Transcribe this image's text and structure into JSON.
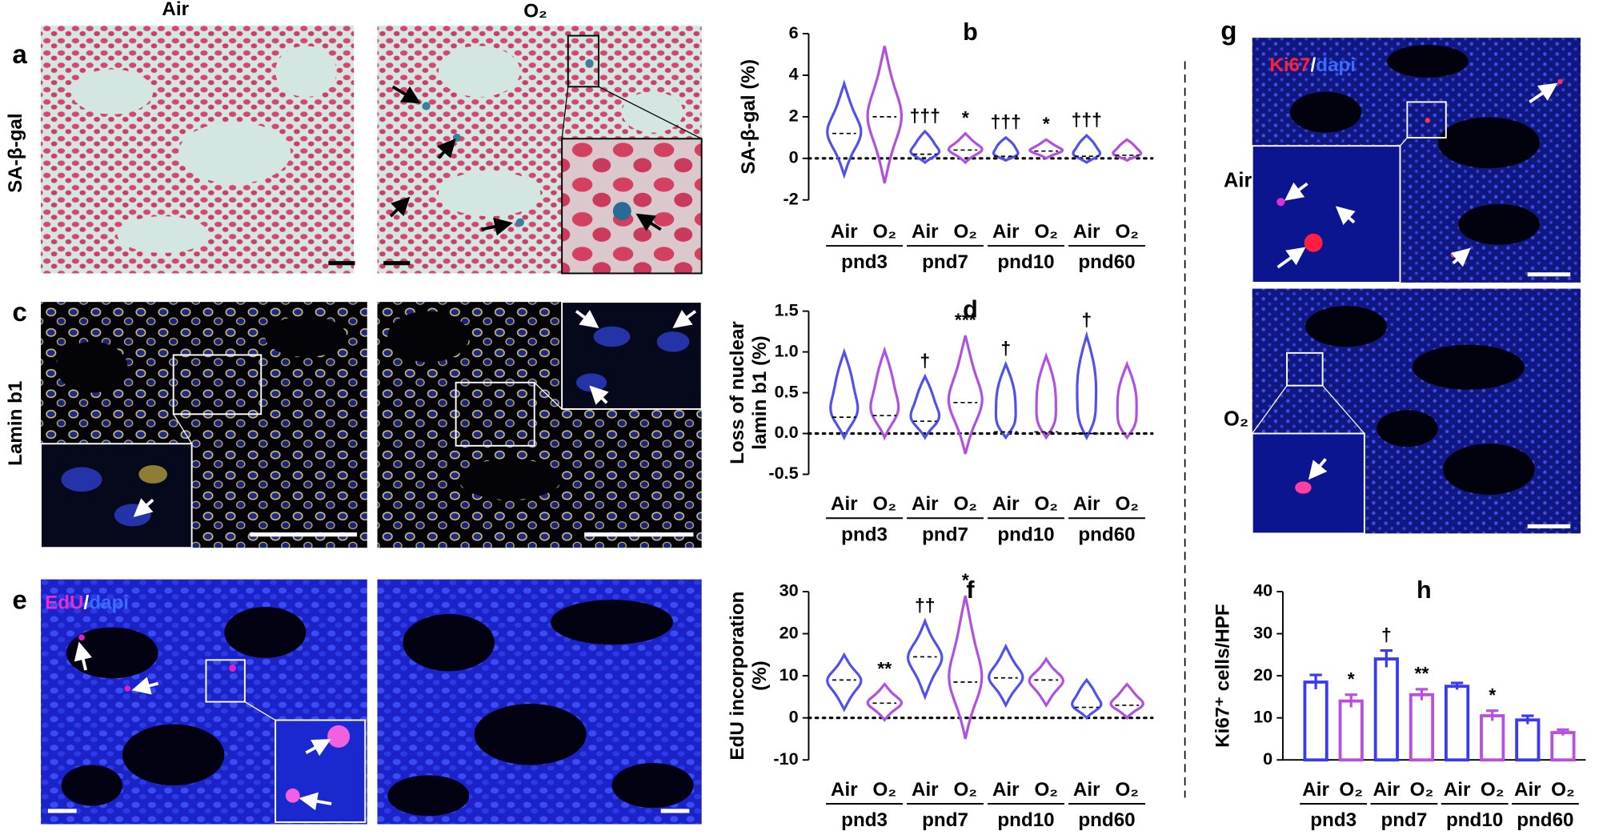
{
  "panel_labels": [
    "a",
    "c",
    "e",
    "g"
  ],
  "columns": [
    "Air",
    "O₂"
  ],
  "rows": [
    "SA-β-gal",
    "Lamin b1"
  ],
  "edu_label": [
    "EdU",
    "/",
    "dapi"
  ],
  "ki67_label": [
    "Ki67",
    "/",
    "dapi"
  ],
  "g_rows": [
    "Air",
    "O₂"
  ],
  "chart_data": [
    {
      "type": "violin",
      "title": "b",
      "ylabel": [
        "SA-β-gal (%)"
      ],
      "ylim": [
        -2,
        6
      ],
      "yticks": [
        -2,
        0,
        2,
        4,
        6
      ],
      "categories": [
        "pnd3",
        "pnd7",
        "pnd10",
        "pnd60"
      ],
      "series": [
        {
          "name": "Air",
          "color": "#5050ee",
          "median": [
            1.2,
            0.2,
            0.1,
            0.1
          ],
          "min": [
            -0.8,
            -0.2,
            -0.1,
            -0.2
          ],
          "max": [
            3.6,
            1.3,
            1.0,
            1.1
          ],
          "sig": [
            null,
            "†††",
            "†††",
            "†††"
          ]
        },
        {
          "name": "O₂",
          "color": "#b050e0",
          "median": [
            2.0,
            0.4,
            0.35,
            0.15
          ],
          "min": [
            -1.2,
            -0.2,
            0,
            -0.1
          ],
          "max": [
            5.4,
            1.2,
            0.9,
            0.9
          ],
          "sig": [
            null,
            "*",
            "*",
            null
          ]
        }
      ]
    },
    {
      "type": "violin",
      "title": "d",
      "ylabel": [
        "Loss of nuclear",
        "lamin b1 (%)"
      ],
      "ylim": [
        -0.5,
        1.5
      ],
      "yticks": [
        {
          "value": -0.5,
          "label": "-0.5"
        },
        {
          "value": 0,
          "label": "0.0"
        },
        {
          "value": 0.5,
          "label": "0.5"
        },
        {
          "value": 1,
          "label": "1.0"
        },
        {
          "value": 1.5,
          "label": "1.5"
        }
      ],
      "categories": [
        "pnd3",
        "pnd7",
        "pnd10",
        "pnd60"
      ],
      "series": [
        {
          "name": "Air",
          "color": "#5050ee",
          "median": [
            0.2,
            0.15,
            0.02,
            0
          ],
          "min": [
            -0.05,
            -0.05,
            -0.05,
            -0.05
          ],
          "max": [
            1.0,
            0.7,
            0.85,
            1.2
          ],
          "sig": [
            null,
            "†",
            "†",
            "†"
          ]
        },
        {
          "name": "O₂",
          "color": "#b050e0",
          "median": [
            0.22,
            0.38,
            0.02,
            0
          ],
          "min": [
            -0.05,
            -0.25,
            -0.05,
            -0.05
          ],
          "max": [
            1.02,
            1.2,
            0.95,
            0.85
          ],
          "sig": [
            null,
            "***",
            null,
            null
          ]
        }
      ]
    },
    {
      "type": "violin",
      "title": "f",
      "ylabel": [
        "EdU incorporation",
        "(%)"
      ],
      "ylim": [
        -10,
        30
      ],
      "yticks": [
        -10,
        0,
        10,
        20,
        30
      ],
      "categories": [
        "pnd3",
        "pnd7",
        "pnd10",
        "pnd60"
      ],
      "series": [
        {
          "name": "Air",
          "color": "#5050ee",
          "median": [
            9,
            14.5,
            9.5,
            2.5
          ],
          "min": [
            2,
            5,
            3,
            0
          ],
          "max": [
            15,
            23,
            17,
            9
          ],
          "sig": [
            null,
            "††",
            null,
            null
          ]
        },
        {
          "name": "O₂",
          "color": "#b050e0",
          "median": [
            3.5,
            8.5,
            9,
            3
          ],
          "min": [
            -0.5,
            -5,
            3,
            0
          ],
          "max": [
            8,
            29,
            14,
            8
          ],
          "sig": [
            "**",
            "*",
            null,
            null
          ]
        }
      ]
    },
    {
      "type": "bar",
      "title": "h",
      "ylabel": [
        "Ki67⁺ cells/HPF"
      ],
      "ylim": [
        0,
        40
      ],
      "yticks": [
        0,
        10,
        20,
        30,
        40
      ],
      "categories": [
        "pnd3",
        "pnd7",
        "pnd10",
        "pnd60"
      ],
      "series": [
        {
          "name": "Air",
          "color": "#3a3af5",
          "values": [
            18.5,
            24,
            17.5,
            9.5
          ],
          "errors": [
            1.7,
            2,
            0.8,
            1
          ],
          "sig": [
            null,
            "†",
            null,
            null
          ]
        },
        {
          "name": "O₂",
          "color": "#b84fe0",
          "values": [
            14,
            15.5,
            10.5,
            6.5
          ],
          "errors": [
            1.5,
            1.3,
            1.2,
            0.7
          ],
          "sig": [
            "*",
            "**",
            "*",
            null
          ]
        }
      ]
    }
  ]
}
